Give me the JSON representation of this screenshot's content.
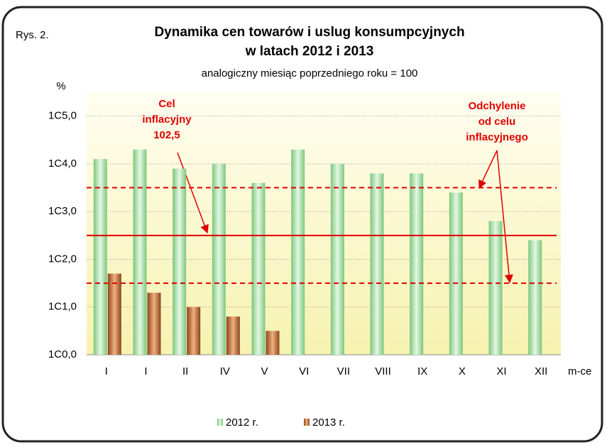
{
  "chart_data": {
    "type": "bar",
    "label": "Rys. 2.",
    "title": "Dynamika cen towarów i uslug konsumpcyjnych",
    "title_line2": "w latach 2012 i 2013",
    "subtitle": "analogiczny miesiąc poprzedniego roku = 100",
    "y_label": "%",
    "x_label": "m-ce",
    "categories": [
      "I",
      "I",
      "II",
      "IV",
      "V",
      "VI",
      "VII",
      "VIII",
      "IX",
      "X",
      "XI",
      "XII"
    ],
    "series": [
      {
        "name": "2012 r.",
        "color": "#8fd18f",
        "values": [
          104.1,
          104.3,
          103.9,
          104.0,
          103.6,
          104.3,
          104.0,
          103.8,
          103.8,
          103.4,
          102.8,
          102.4
        ]
      },
      {
        "name": "2013 r.",
        "color": "#b8642a",
        "values": [
          101.7,
          101.3,
          101.0,
          100.8,
          100.5,
          null,
          null,
          null,
          null,
          null,
          null,
          null
        ]
      }
    ],
    "ylim": [
      100,
      105.5
    ],
    "yticks": [
      {
        "value": 100,
        "label": "1C0,0"
      },
      {
        "value": 101,
        "label": "1C1,0"
      },
      {
        "value": 102,
        "label": "1C2,0"
      },
      {
        "value": 103,
        "label": "1C3,0"
      },
      {
        "value": 104,
        "label": "1C4,0"
      },
      {
        "value": 105,
        "label": "1C5,0"
      }
    ],
    "grid": true,
    "reference_lines": [
      {
        "value": 102.5,
        "style": "solid",
        "color": "#e00000"
      },
      {
        "value": 103.5,
        "style": "dashed",
        "color": "#e00000"
      },
      {
        "value": 101.5,
        "style": "dashed",
        "color": "#e00000"
      }
    ],
    "annotations": [
      [
        "Cel",
        "inflacyjny",
        "102,5"
      ],
      [
        "Odchylenie",
        "od celu",
        "inflacyjnego"
      ]
    ],
    "legend": "bottom"
  }
}
